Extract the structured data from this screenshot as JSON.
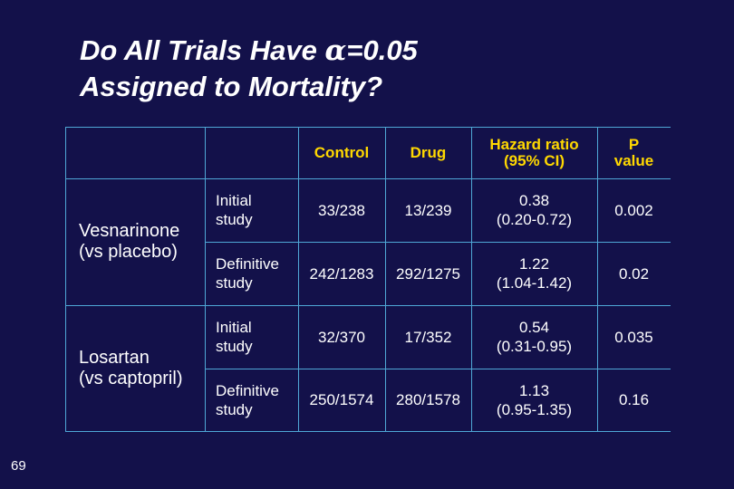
{
  "slide": {
    "title_line1_pre": "Do All Trials Have ",
    "alpha_symbol": "α",
    "title_line1_post": "=0.05",
    "title_line2": "Assigned to Mortality?",
    "page_number": "69"
  },
  "table": {
    "headers": {
      "control": "Control",
      "drug": "Drug",
      "hazard_ratio": [
        "Hazard ratio",
        "(95% CI)"
      ],
      "p_value": [
        "P",
        "value"
      ]
    },
    "groups": [
      {
        "drug": [
          "Vesnarinone",
          "(vs placebo)"
        ],
        "rows": [
          {
            "study": [
              "Initial",
              "study"
            ],
            "control": "33/238",
            "drug": "13/239",
            "hr": [
              "0.38",
              "(0.20-0.72)"
            ],
            "p": "0.002"
          },
          {
            "study": [
              "Definitive",
              "study"
            ],
            "control": "242/1283",
            "drug": "292/1275",
            "hr": [
              "1.22",
              "(1.04-1.42)"
            ],
            "p": "0.02"
          }
        ]
      },
      {
        "drug": [
          "Losartan",
          "(vs captopril)"
        ],
        "rows": [
          {
            "study": [
              "Initial",
              "study"
            ],
            "control": "32/370",
            "drug": "17/352",
            "hr": [
              "0.54",
              "(0.31-0.95)"
            ],
            "p": "0.035"
          },
          {
            "study": [
              "Definitive",
              "study"
            ],
            "control": "250/1574",
            "drug": "280/1578",
            "hr": [
              "1.13",
              "(0.95-1.35)"
            ],
            "p": "0.16"
          }
        ]
      }
    ]
  },
  "colors": {
    "background": "#13114a",
    "header_text": "#ffd800",
    "grid_lines": "#4fa7d6",
    "body_text": "#ffffff"
  }
}
